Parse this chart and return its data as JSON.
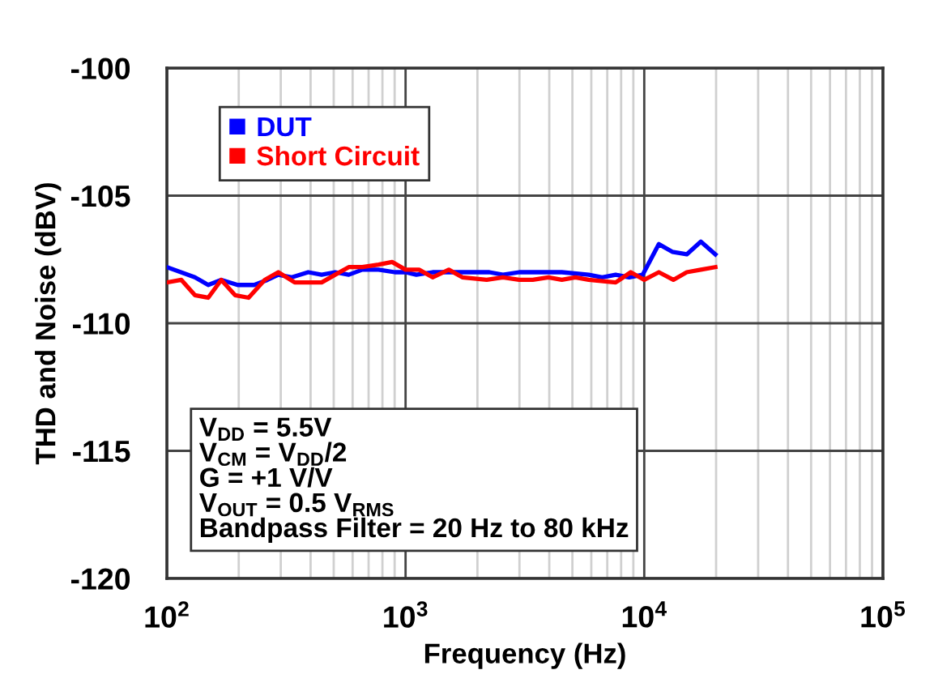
{
  "chart_data": {
    "type": "line",
    "xlabel": "Frequency (Hz)",
    "ylabel": "THD and Noise (dBV)",
    "log": "x",
    "xlim": [
      100,
      100000
    ],
    "xticks": [
      {
        "value": 100,
        "label": "10$^{2}$"
      },
      {
        "value": 1000,
        "label": "10$^{3}$"
      },
      {
        "value": 10000,
        "label": "10$^{4}$"
      },
      {
        "value": 100000,
        "label": "10$^{5}$"
      }
    ],
    "ylim": [
      -120,
      -100
    ],
    "yticks": [
      -120,
      -115,
      -110,
      -105,
      -100
    ],
    "grid": true,
    "legend": "top left",
    "annotations": [
      "V$_{DD}$ = 5.5V",
      "V$_{CM}$ = V$_{DD}$/2",
      "G = +1 V/V",
      "V$_{OUT}$ = 0.5 V$_{RMS}$",
      "Bandpass Filter = 20 Hz to 80 kHz"
    ],
    "series": [
      {
        "name": "DUT",
        "color": "#0000ff",
        "x": [
          100,
          131,
          149,
          169,
          198,
          232,
          264,
          293,
          334,
          391,
          445,
          507,
          578,
          659,
          771,
          901,
          1000,
          1110,
          1298,
          1518,
          1775,
          2244,
          2558,
          2992,
          3483,
          4516,
          5853,
          6666,
          7590,
          8647,
          9845,
          11510,
          13100,
          15070,
          17260,
          19860
        ],
        "values": [
          -107.8,
          -108.2,
          -108.5,
          -108.3,
          -108.5,
          -108.5,
          -108.3,
          -108.1,
          -108.2,
          -108.0,
          -108.1,
          -108.0,
          -108.1,
          -107.9,
          -107.9,
          -108.0,
          -108.0,
          -108.1,
          -108.0,
          -108.0,
          -108.0,
          -108.0,
          -108.1,
          -108.0,
          -108.0,
          -108.0,
          -108.1,
          -108.2,
          -108.1,
          -108.2,
          -108.1,
          -106.9,
          -107.2,
          -107.3,
          -106.8,
          -107.3
        ]
      },
      {
        "name": "Short Circuit",
        "color": "#ff0000",
        "x": [
          100,
          115,
          131,
          149,
          169,
          193,
          220,
          257,
          293,
          343,
          391,
          445,
          507,
          578,
          659,
          771,
          878,
          1000,
          1139,
          1298,
          1518,
          1729,
          2187,
          2558,
          2992,
          3410,
          3966,
          4516,
          5142,
          5853,
          7590,
          8780,
          10000,
          11510,
          13240,
          15070,
          17260,
          19860
        ],
        "values": [
          -108.4,
          -108.3,
          -108.9,
          -109.0,
          -108.3,
          -108.9,
          -109.0,
          -108.3,
          -108.0,
          -108.4,
          -108.4,
          -108.4,
          -108.1,
          -107.8,
          -107.8,
          -107.7,
          -107.6,
          -107.9,
          -107.9,
          -108.2,
          -107.9,
          -108.2,
          -108.3,
          -108.2,
          -108.3,
          -108.3,
          -108.2,
          -108.3,
          -108.2,
          -108.3,
          -108.4,
          -108.0,
          -108.3,
          -108.0,
          -108.3,
          -108.0,
          -107.9,
          -107.8
        ]
      }
    ]
  }
}
